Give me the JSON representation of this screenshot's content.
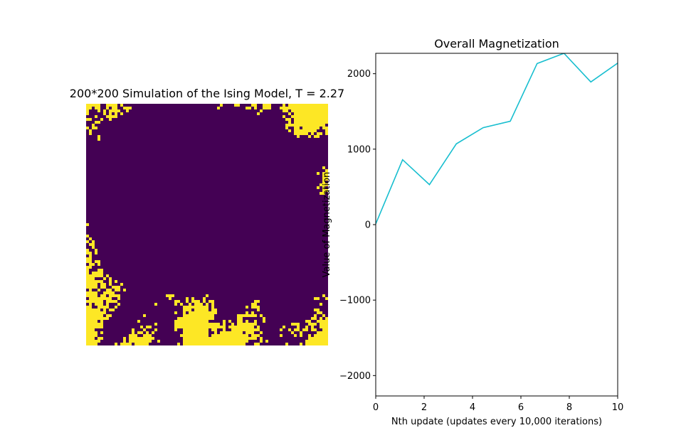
{
  "colors": {
    "spin_up": "#fde725",
    "spin_down": "#440154",
    "line": "#17becf"
  },
  "chart_data": [
    {
      "type": "heatmap",
      "title": "200*200 Simulation of the Ising Model, T = 2.27",
      "grid_size": [
        200,
        200
      ],
      "values": [
        -1,
        1
      ],
      "colormap": "viridis"
    },
    {
      "type": "line",
      "title": "Overall Magnetization",
      "xlabel": "Nth update (updates every 10,000 iterations)",
      "ylabel": "Value of Magnetization",
      "xlim": [
        0,
        10
      ],
      "ylim": [
        -2270,
        2270
      ],
      "xticks": [
        "0",
        "2",
        "4",
        "6",
        "8",
        "10"
      ],
      "yticks": [
        "−2000",
        "−1000",
        "0",
        "1000",
        "2000"
      ],
      "series": [
        {
          "x": [
            0,
            1.11,
            2.22,
            3.33,
            4.44,
            5.56,
            6.67,
            7.78,
            8.89,
            10
          ],
          "values": [
            10,
            860,
            530,
            1070,
            1285,
            1370,
            2135,
            2270,
            1890,
            2140
          ]
        }
      ]
    }
  ]
}
